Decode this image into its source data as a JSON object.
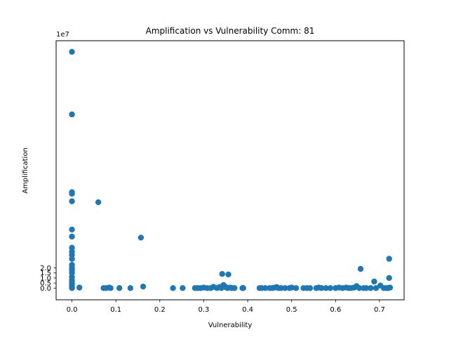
{
  "chart_data": {
    "type": "scatter",
    "title": "Amplification vs Vulnerability Comm: 81",
    "xlabel": "Vulnerability",
    "ylabel": "Amplification",
    "y_offset_label": "1e7",
    "xlim": [
      -0.036,
      0.756
    ],
    "ylim": [
      -1.16,
      24.5
    ],
    "x_ticks": [
      0.0,
      0.1,
      0.2,
      0.3,
      0.4,
      0.5,
      0.6,
      0.7
    ],
    "x_tick_labels": [
      "0.0",
      "0.1",
      "0.2",
      "0.3",
      "0.4",
      "0.5",
      "0.6",
      "0.7"
    ],
    "y_ticks": [
      0.0,
      0.5,
      1.0,
      1.5,
      2.0
    ],
    "y_tick_labels": [
      "0.0",
      "0.5",
      "1.0",
      "1.5",
      "2.0"
    ],
    "y_scale_factor": 10000000,
    "grid": false,
    "marker_color": "#1f77b4",
    "series": [
      {
        "points": [
          [
            0.0,
            23.4
          ],
          [
            0.0,
            17.2
          ],
          [
            0.0,
            9.5
          ],
          [
            0.0,
            9.35
          ],
          [
            0.0,
            8.6
          ],
          [
            0.0,
            5.8
          ],
          [
            0.0,
            5.1
          ],
          [
            0.0,
            4.0
          ],
          [
            0.0,
            3.6
          ],
          [
            0.0,
            3.3
          ],
          [
            0.0,
            2.9
          ],
          [
            0.0,
            2.3
          ],
          [
            0.0,
            2.0
          ],
          [
            0.0,
            1.75
          ],
          [
            0.0,
            1.5
          ],
          [
            0.0,
            1.1
          ],
          [
            0.0,
            0.8
          ],
          [
            0.0,
            0.6
          ],
          [
            0.0,
            0.4
          ],
          [
            0.0,
            0.25
          ],
          [
            0.0,
            0.1
          ],
          [
            0.0,
            0.0
          ],
          [
            0.017,
            0.05
          ],
          [
            0.06,
            8.5
          ],
          [
            0.072,
            0.0
          ],
          [
            0.078,
            0.0
          ],
          [
            0.085,
            0.05
          ],
          [
            0.088,
            0.0
          ],
          [
            0.108,
            0.0
          ],
          [
            0.133,
            0.0
          ],
          [
            0.157,
            5.0
          ],
          [
            0.162,
            0.15
          ],
          [
            0.23,
            0.0
          ],
          [
            0.252,
            0.0
          ],
          [
            0.28,
            0.0
          ],
          [
            0.286,
            0.0
          ],
          [
            0.293,
            0.0
          ],
          [
            0.3,
            0.05
          ],
          [
            0.308,
            0.0
          ],
          [
            0.316,
            0.0
          ],
          [
            0.322,
            0.12
          ],
          [
            0.33,
            0.0
          ],
          [
            0.336,
            0.1
          ],
          [
            0.34,
            0.0
          ],
          [
            0.342,
            1.4
          ],
          [
            0.345,
            0.3
          ],
          [
            0.35,
            0.1
          ],
          [
            0.354,
            0.0
          ],
          [
            0.356,
            1.35
          ],
          [
            0.36,
            0.05
          ],
          [
            0.364,
            0.0
          ],
          [
            0.37,
            0.0
          ],
          [
            0.388,
            0.0
          ],
          [
            0.39,
            0.0
          ],
          [
            0.427,
            0.0
          ],
          [
            0.432,
            0.0
          ],
          [
            0.44,
            0.0
          ],
          [
            0.45,
            0.0
          ],
          [
            0.456,
            0.0
          ],
          [
            0.462,
            0.05
          ],
          [
            0.466,
            0.1
          ],
          [
            0.47,
            0.0
          ],
          [
            0.476,
            0.0
          ],
          [
            0.485,
            0.0
          ],
          [
            0.495,
            0.0
          ],
          [
            0.5,
            0.05
          ],
          [
            0.51,
            0.0
          ],
          [
            0.527,
            0.0
          ],
          [
            0.535,
            0.0
          ],
          [
            0.542,
            0.0
          ],
          [
            0.556,
            0.0
          ],
          [
            0.562,
            0.05
          ],
          [
            0.568,
            0.0
          ],
          [
            0.578,
            0.0
          ],
          [
            0.588,
            0.0
          ],
          [
            0.6,
            0.0
          ],
          [
            0.608,
            0.05
          ],
          [
            0.616,
            0.0
          ],
          [
            0.624,
            0.05
          ],
          [
            0.63,
            0.0
          ],
          [
            0.636,
            0.0
          ],
          [
            0.642,
            0.05
          ],
          [
            0.648,
            0.2
          ],
          [
            0.654,
            0.0
          ],
          [
            0.657,
            1.9
          ],
          [
            0.664,
            0.0
          ],
          [
            0.67,
            0.0
          ],
          [
            0.68,
            0.0
          ],
          [
            0.688,
            0.65
          ],
          [
            0.692,
            0.0
          ],
          [
            0.702,
            0.25
          ],
          [
            0.71,
            0.0
          ],
          [
            0.716,
            0.0
          ],
          [
            0.72,
            0.0
          ],
          [
            0.722,
            2.9
          ],
          [
            0.722,
            1.0
          ],
          [
            0.724,
            0.05
          ]
        ]
      }
    ]
  }
}
